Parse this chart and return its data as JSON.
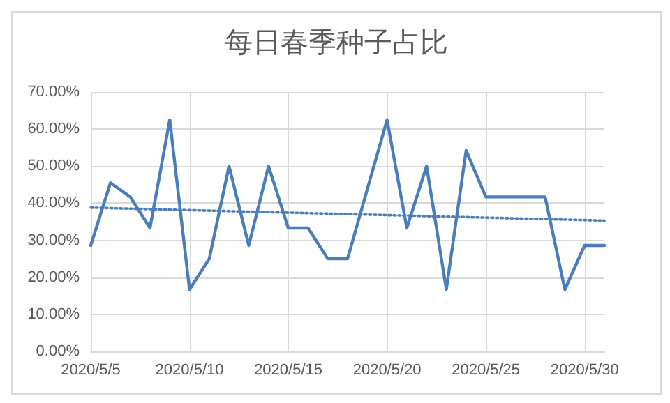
{
  "chart_data": {
    "type": "line",
    "title": "每日春季种子占比",
    "x": [
      "2020-05-05",
      "2020-05-06",
      "2020-05-07",
      "2020-05-08",
      "2020-05-09",
      "2020-05-10",
      "2020-05-11",
      "2020-05-12",
      "2020-05-13",
      "2020-05-14",
      "2020-05-15",
      "2020-05-16",
      "2020-05-17",
      "2020-05-18",
      "2020-05-19",
      "2020-05-20",
      "2020-05-21",
      "2020-05-22",
      "2020-05-23",
      "2020-05-24",
      "2020-05-25",
      "2020-05-26",
      "2020-05-27",
      "2020-05-28",
      "2020-05-29",
      "2020-05-30",
      "2020-05-31"
    ],
    "series": [
      {
        "color": "#4a7ebb",
        "line_style": "solid",
        "values": [
          28.6,
          45.5,
          41.7,
          33.3,
          62.5,
          16.7,
          25,
          50,
          28.6,
          50,
          33.3,
          33.3,
          25,
          25,
          43.8,
          62.5,
          33.3,
          50,
          16.7,
          54.2,
          41.7,
          41.7,
          41.7,
          41.7,
          16.7,
          28.6,
          28.6
        ]
      },
      {
        "type": "line",
        "color": "#4a7ebb",
        "line_style": "dotted",
        "x": [
          "2020-05-05",
          "2020-05-31"
        ],
        "values": [
          38.8,
          35.3
        ]
      }
    ],
    "xlim": [
      "2020-05-05",
      "2020-05-31"
    ],
    "xticks": [
      {
        "value": "2020-05-05",
        "label": "2020/5/5"
      },
      {
        "value": "2020-05-10",
        "label": "2020/5/10"
      },
      {
        "value": "2020-05-15",
        "label": "2020/5/15"
      },
      {
        "value": "2020-05-20",
        "label": "2020/5/20"
      },
      {
        "value": "2020-05-25",
        "label": "2020/5/25"
      },
      {
        "value": "2020-05-30",
        "label": "2020/5/30"
      }
    ],
    "ylim": [
      0,
      70
    ],
    "yticks": [
      {
        "value": 0,
        "label": "0.00%"
      },
      {
        "value": 10,
        "label": "10.00%"
      },
      {
        "value": 20,
        "label": "20.00%"
      },
      {
        "value": 30,
        "label": "30.00%"
      },
      {
        "value": 40,
        "label": "40.00%"
      },
      {
        "value": 50,
        "label": "50.00%"
      },
      {
        "value": 60,
        "label": "60.00%"
      },
      {
        "value": 70,
        "label": "70.00%"
      }
    ],
    "grid": true,
    "marker": "none"
  }
}
